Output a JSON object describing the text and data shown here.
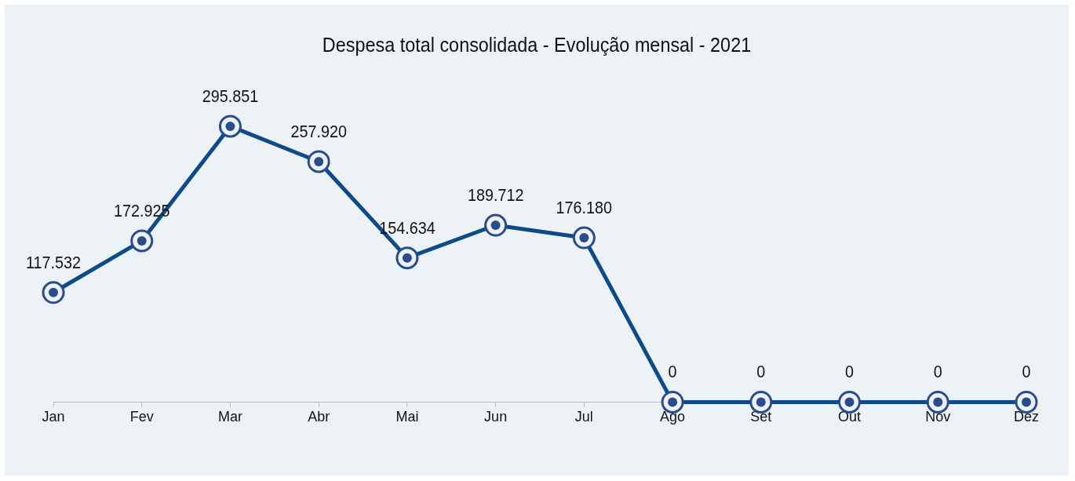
{
  "chart_data": {
    "type": "line",
    "title": "Despesa total consolidada - Evolução mensal - 2021",
    "categories": [
      "Jan",
      "Fev",
      "Mar",
      "Abr",
      "Mai",
      "Jun",
      "Jul",
      "Ago",
      "Set",
      "Out",
      "Nov",
      "Dez"
    ],
    "series": [
      {
        "color": "#0d4a8a",
        "values": [
          117532,
          172925,
          295851,
          257920,
          154634,
          189712,
          176180,
          0,
          0,
          0,
          0,
          0
        ],
        "value_labels": [
          "117.532",
          "172.925",
          "295.851",
          "257.920",
          "154.634",
          "189.712",
          "176.180",
          "0",
          "0",
          "0",
          "0",
          "0"
        ]
      }
    ],
    "tick_labels": "x",
    "marker": "circle",
    "line_style": "solid",
    "legend": false,
    "grid": false
  }
}
